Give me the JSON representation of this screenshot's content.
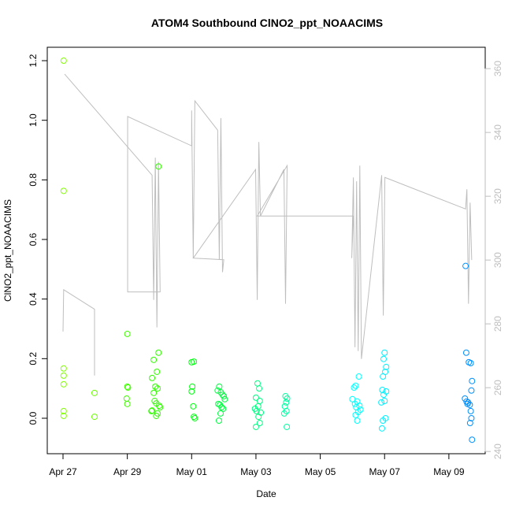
{
  "chart_data": {
    "type": "scatter",
    "title": "ATOM4 Southbound ClNO2_ppt_NOAACIMS",
    "xlabel": "Date",
    "ylabel": "ClNO2_ppt_NOAACIMS",
    "xlim": [
      -0.49,
      13.13
    ],
    "xticks": [
      {
        "value": 0,
        "label": "Apr 27"
      },
      {
        "value": 2,
        "label": "Apr 29"
      },
      {
        "value": 4,
        "label": "May 01"
      },
      {
        "value": 6,
        "label": "May 03"
      },
      {
        "value": 8,
        "label": "May 05"
      },
      {
        "value": 10,
        "label": "May 07"
      },
      {
        "value": 12,
        "label": "May 09"
      }
    ],
    "ylim": [
      -0.119,
      1.245
    ],
    "yticks": [
      {
        "value": 0,
        "label": "0.0"
      },
      0.2,
      0.4,
      0.6,
      0.8,
      {
        "value": 1,
        "label": "1.0"
      },
      1.2
    ],
    "y2lim": [
      239.3,
      366.7
    ],
    "y2ticks": [
      240,
      260,
      280,
      300,
      320,
      340,
      360
    ],
    "y2color": "#bebebe",
    "point_groups": [
      {
        "color": "#80ff00",
        "x": [
          0.02,
          0.02,
          0.02,
          0.02,
          0.02,
          0.02,
          0.02
        ],
        "y": [
          1.2,
          0.763,
          0.167,
          0.143,
          0.114,
          0.024,
          0.008
        ]
      },
      {
        "color": "#6aff00",
        "x": [
          0.98,
          0.98
        ],
        "y": [
          0.085,
          0.005
        ]
      },
      {
        "color": "#40ff00",
        "x": [
          2.0,
          2.0,
          2.02,
          1.98,
          2.0
        ],
        "y": [
          0.283,
          0.106,
          0.103,
          0.066,
          0.048
        ]
      },
      {
        "color": "#30ff00",
        "x": [
          2.97,
          2.97,
          2.82,
          2.92,
          2.77,
          2.87,
          2.94,
          2.82,
          2.85,
          2.9,
          2.99,
          3.02,
          2.77,
          2.94,
          2.9,
          2.75
        ],
        "y": [
          0.845,
          0.22,
          0.196,
          0.156,
          0.135,
          0.106,
          0.1,
          0.085,
          0.058,
          0.05,
          0.042,
          0.037,
          0.026,
          0.016,
          0.008,
          0.024
        ]
      },
      {
        "color": "#00ff10",
        "x": [
          4.0,
          4.07,
          4.02,
          4.0,
          4.05,
          4.07,
          4.1
        ],
        "y": [
          0.188,
          0.19,
          0.106,
          0.09,
          0.04,
          0.005,
          0.0
        ]
      },
      {
        "color": "#00ff40",
        "x": [
          4.86,
          4.81,
          4.91,
          4.96,
          5.0,
          5.03,
          4.83,
          4.88,
          4.93,
          4.98,
          4.9,
          4.85
        ],
        "y": [
          0.106,
          0.093,
          0.087,
          0.079,
          0.074,
          0.064,
          0.048,
          0.045,
          0.037,
          0.032,
          0.016,
          -0.008
        ]
      },
      {
        "color": "#00ff80",
        "x": [
          6.05,
          6.1,
          6.0,
          6.12,
          6.07,
          5.97,
          6.02,
          6.15,
          6.08,
          6.12,
          6.0
        ],
        "y": [
          0.117,
          0.1,
          0.069,
          0.058,
          0.04,
          0.032,
          0.024,
          0.019,
          0.005,
          -0.016,
          -0.029
        ]
      },
      {
        "color": "#00ffa0",
        "x": [
          6.92,
          6.97,
          6.94,
          6.9,
          6.95,
          6.88,
          6.96
        ],
        "y": [
          0.074,
          0.066,
          0.053,
          0.04,
          0.024,
          0.016,
          -0.029
        ]
      },
      {
        "color": "#00ffff",
        "x": [
          9.2,
          9.1,
          9.05,
          9.0,
          9.15,
          9.08,
          9.22,
          9.12,
          9.25,
          9.18,
          9.1,
          9.15
        ],
        "y": [
          0.14,
          0.109,
          0.103,
          0.064,
          0.056,
          0.048,
          0.042,
          0.037,
          0.029,
          0.021,
          0.011,
          -0.008
        ]
      },
      {
        "color": "#00f0ff",
        "x": [
          10.0,
          9.97,
          10.05,
          10.02,
          9.95,
          9.93,
          10.05,
          9.97,
          10.0,
          9.9,
          10.03,
          9.95,
          9.92
        ],
        "y": [
          0.22,
          0.199,
          0.172,
          0.156,
          0.14,
          0.095,
          0.09,
          0.079,
          0.058,
          0.053,
          0.0,
          -0.008,
          -0.034
        ]
      },
      {
        "color": "#0090ff",
        "x": [
          12.52,
          12.54,
          12.62,
          12.68,
          12.72,
          12.7,
          12.5,
          12.55,
          12.6,
          12.58,
          12.65,
          12.68,
          12.7,
          12.66,
          12.72
        ],
        "y": [
          0.511,
          0.22,
          0.188,
          0.185,
          0.125,
          0.093,
          0.066,
          0.056,
          0.053,
          0.048,
          0.045,
          0.024,
          0.0,
          -0.016,
          -0.072
        ]
      }
    ],
    "line": {
      "color": "#bebebe",
      "axis": "y2",
      "x": [
        0,
        0.02,
        0.98,
        0.98,
        null,
        0.05,
        2.77,
        2.82,
        2.87,
        2.92,
        2.97,
        3.02,
        2.01,
        2.01,
        4.0,
        4.0,
        4.05,
        4.1,
        4.81,
        4.86,
        4.91,
        4.96,
        5.0,
        4.05,
        5.99,
        6.04,
        6.09,
        6.14,
        6.87,
        6.92,
        6.97,
        6.04,
        9.03,
        8.98,
        9.03,
        9.08,
        9.13,
        9.18,
        9.23,
        9.28,
        9.91,
        9.96,
        10.01,
        12.52,
        12.56,
        12.61,
        12.66,
        12.71
      ],
      "y": [
        277.6,
        290.7,
        284.6,
        263.8,
        null,
        358.3,
        326.6,
        287.5,
        332.1,
        278.9,
        330.8,
        290.0,
        290.0,
        345.0,
        335.8,
        346.9,
        300.6,
        349.9,
        340.7,
        300.1,
        344.5,
        296.2,
        300.1,
        300.6,
        328.4,
        287.5,
        337.0,
        313.8,
        328.4,
        286.3,
        329.6,
        313.8,
        313.8,
        300.6,
        325.9,
        272.7,
        324.7,
        271.5,
        329.6,
        269.0,
        326.6,
        282.6,
        325.9,
        316.0,
        322.2,
        286.3,
        318.0,
        300.0
      ]
    }
  }
}
